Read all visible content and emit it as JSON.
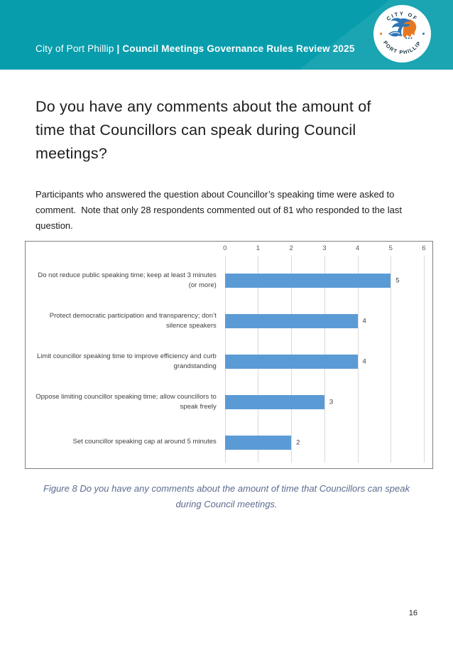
{
  "header": {
    "title_regular": "City of Port Phillip ",
    "title_bold": "| Council Meetings Governance Rules Review 2025",
    "logo": {
      "top_text": "CITY OF",
      "bottom_text": "PORT PHILLIP"
    },
    "colors": {
      "banner": "#089DAC",
      "logo_blue": "#2E75B6",
      "logo_orange": "#E87722"
    }
  },
  "heading": "Do you have any comments about the amount of time that Councillors can speak during Council meetings?",
  "intro": "Participants who answered the question about Councillor’s speaking time were asked to comment.  Note that only 28 respondents commented out of 81 who responded to the last question.",
  "chart_data": {
    "type": "bar",
    "orientation": "horizontal",
    "categories": [
      "Do not reduce public speaking time; keep at least 3 minutes (or more)",
      "Protect democratic participation and transparency; don’t silence speakers",
      "Limit councillor speaking time to improve efficiency and curb grandstanding",
      "Oppose limiting councillor speaking time; allow councillors to speak freely",
      "Set councillor speaking cap at around 5 minutes"
    ],
    "values": [
      5,
      4,
      4,
      3,
      2
    ],
    "xlim": [
      0,
      6
    ],
    "xticks": [
      0,
      1,
      2,
      3,
      4,
      5,
      6
    ],
    "bar_color": "#5B9BD5",
    "grid": true,
    "data_labels": true,
    "legend": "none",
    "title": ""
  },
  "caption": "Figure 8 Do you have any comments about the amount of time that Councillors can speak during Council meetings.",
  "page_number": "16"
}
